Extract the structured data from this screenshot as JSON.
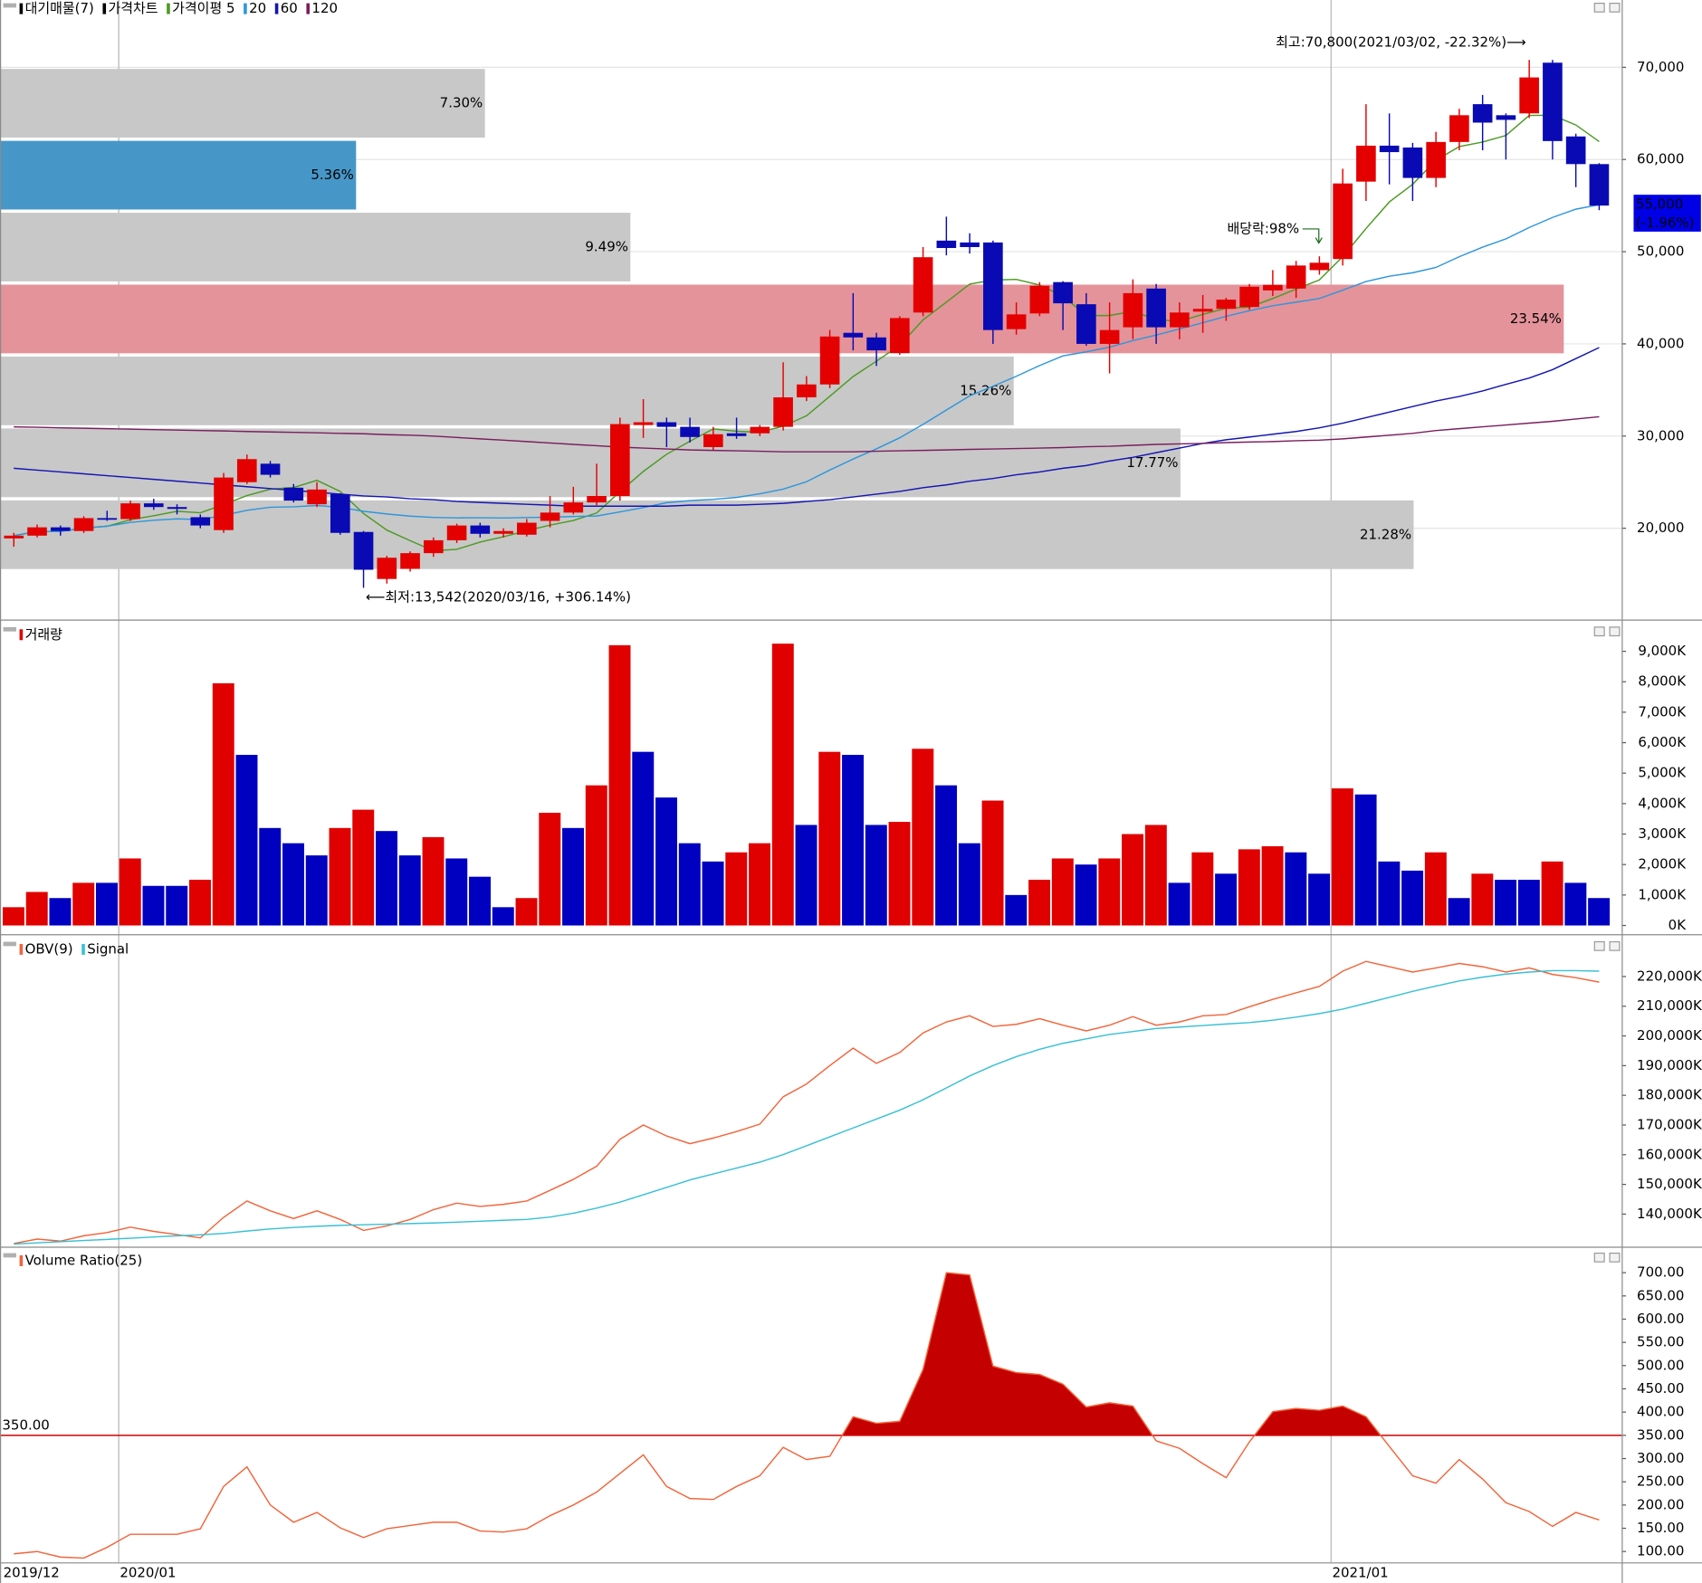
{
  "chart_data": [
    {
      "type": "candlestick",
      "legend_extra": [
        "대기매물(7)",
        "가격차트"
      ],
      "categories": [
        "2019/12",
        null,
        null,
        null,
        null,
        "2020/01",
        null,
        null,
        null,
        null,
        null,
        null,
        null,
        null,
        null,
        null,
        null,
        null,
        null,
        null,
        null,
        null,
        null,
        null,
        null,
        null,
        null,
        null,
        null,
        null,
        null,
        null,
        null,
        null,
        null,
        null,
        null,
        null,
        null,
        null,
        null,
        null,
        null,
        null,
        null,
        null,
        null,
        null,
        null,
        null,
        null,
        null,
        null,
        null,
        null,
        null,
        null,
        "2021/01",
        null,
        null,
        null,
        null,
        null,
        null,
        null,
        null,
        null,
        null,
        null
      ],
      "open": [
        18900,
        19200,
        20100,
        19700,
        21100,
        21000,
        22700,
        22300,
        21200,
        19800,
        25000,
        27000,
        24400,
        22600,
        23700,
        19600,
        14500,
        15600,
        17300,
        18700,
        20300,
        19400,
        19300,
        20800,
        21700,
        22800,
        23500,
        31200,
        31500,
        31000,
        28800,
        30300,
        30300,
        31000,
        34200,
        35600,
        41200,
        40700,
        39000,
        43400,
        51200,
        51000,
        51000,
        41600,
        43300,
        46700,
        44300,
        40000,
        41800,
        46000,
        41800,
        43500,
        43800,
        44000,
        45800,
        46000,
        48000,
        49200,
        57600,
        61500,
        61300,
        58000,
        61900,
        66000,
        64800,
        65000,
        70500,
        62500,
        59500
      ],
      "high": [
        19500,
        20400,
        20300,
        21300,
        21900,
        23000,
        23200,
        22600,
        21500,
        26000,
        28000,
        27300,
        24800,
        25000,
        23800,
        19700,
        17000,
        17500,
        19000,
        20500,
        20600,
        20000,
        21000,
        23500,
        24500,
        27000,
        32000,
        34000,
        32000,
        32000,
        31000,
        32000,
        31200,
        38000,
        36500,
        41500,
        45500,
        41200,
        43000,
        50500,
        53800,
        52000,
        51200,
        44500,
        46700,
        46800,
        45500,
        44500,
        47000,
        46500,
        44500,
        45300,
        45000,
        46500,
        48000,
        49000,
        49500,
        59000,
        66000,
        65000,
        61800,
        63000,
        65500,
        67000,
        65000,
        70800,
        70800,
        62800,
        59600
      ],
      "low": [
        18000,
        19000,
        19200,
        19500,
        20800,
        20800,
        22000,
        21500,
        20000,
        19500,
        24800,
        25500,
        22800,
        22300,
        19300,
        13542,
        14000,
        15300,
        16900,
        18400,
        19000,
        19000,
        19100,
        20100,
        21500,
        22500,
        23000,
        29800,
        28800,
        29300,
        28500,
        29700,
        30000,
        30600,
        33800,
        35200,
        39300,
        37600,
        38800,
        43000,
        49600,
        49800,
        40000,
        41000,
        43000,
        41500,
        39800,
        36800,
        40500,
        40000,
        40500,
        41200,
        42500,
        43700,
        45200,
        45000,
        47500,
        48500,
        55500,
        57300,
        55500,
        57000,
        61000,
        61000,
        60000,
        64500,
        60000,
        57000,
        54500
      ],
      "close": [
        19200,
        20100,
        19700,
        21100,
        21000,
        22700,
        22300,
        22100,
        20300,
        25500,
        27500,
        25800,
        23000,
        24200,
        19500,
        15500,
        16800,
        17300,
        18700,
        20300,
        19400,
        19700,
        20600,
        21700,
        22800,
        23500,
        31300,
        31500,
        31000,
        29900,
        30200,
        30000,
        31000,
        34200,
        35600,
        40800,
        40700,
        39300,
        42800,
        49400,
        50400,
        50500,
        41500,
        43200,
        46300,
        44400,
        40000,
        41500,
        45500,
        41800,
        43400,
        43800,
        44800,
        46200,
        46400,
        48500,
        48800,
        57400,
        61500,
        60800,
        58000,
        61900,
        64800,
        64000,
        64300,
        68900,
        62000,
        59500,
        55000
      ],
      "up_color": "#e40000",
      "down_color": "#0a0ab4",
      "series": [
        {
          "name": "가격이평 5",
          "color": "#4c9a22",
          "period": 5
        },
        {
          "name": "20",
          "color": "#2d96dc",
          "period": 20
        },
        {
          "name": "60",
          "color": "#1414b4",
          "values": [
            26500,
            26300,
            26100,
            25900,
            25700,
            25500,
            25300,
            25100,
            24900,
            24700,
            24500,
            24300,
            24100,
            23900,
            23700,
            23500,
            23400,
            23200,
            23100,
            22900,
            22800,
            22700,
            22600,
            22500,
            22400,
            22400,
            22400,
            22400,
            22400,
            22500,
            22500,
            22500,
            22600,
            22700,
            22900,
            23100,
            23400,
            23700,
            24000,
            24400,
            24700,
            25100,
            25400,
            25800,
            26100,
            26500,
            26800,
            27300,
            27700,
            28200,
            28700,
            29200,
            29600,
            29900,
            30200,
            30500,
            30900,
            31400,
            32000,
            32600,
            33200,
            33800,
            34300,
            34900,
            35600,
            36300,
            37200,
            38400,
            39600
          ]
        },
        {
          "name": "120",
          "color": "#7a1e5e",
          "values": [
            31000,
            30950,
            30900,
            30850,
            30800,
            30750,
            30700,
            30650,
            30600,
            30550,
            30500,
            30450,
            30400,
            30350,
            30300,
            30250,
            30150,
            30100,
            30000,
            29850,
            29700,
            29550,
            29400,
            29250,
            29100,
            28950,
            28800,
            28700,
            28600,
            28500,
            28450,
            28400,
            28350,
            28300,
            28300,
            28300,
            28300,
            28350,
            28400,
            28450,
            28500,
            28550,
            28600,
            28650,
            28700,
            28750,
            28850,
            28900,
            29000,
            29100,
            29150,
            29200,
            29300,
            29350,
            29400,
            29500,
            29550,
            29700,
            29900,
            30100,
            30300,
            30600,
            30800,
            31000,
            31200,
            31400,
            31600,
            31850,
            32100
          ]
        }
      ],
      "supply_zones": {
        "edges": [
          70000,
          62200,
          54400,
          46600,
          38800,
          31000,
          23200,
          15400
        ],
        "values": [
          7.3,
          5.36,
          9.49,
          23.54,
          15.26,
          17.77,
          21.28
        ],
        "value_labels": [
          "7.30%",
          "5.36%",
          "9.49%",
          "23.54%",
          "15.26%",
          "17.77%",
          "21.28%"
        ],
        "colors": {
          "base": "#c8c8c8",
          "current": "#4697c8",
          "max": "#e4939a"
        }
      },
      "annotations": {
        "high": "최고:70,800(2021/03/02, -22.32%)⟶",
        "low": "⟵최저:13,542(2020/03/16, +306.14%)",
        "dividend": "배당락:98%",
        "price": "55,000",
        "change": "(-1.96%)"
      },
      "ylim": [
        10100,
        77300
      ],
      "yticks": [
        {
          "value": 20000,
          "label": "20,000"
        },
        {
          "value": 30000,
          "label": "30,000"
        },
        {
          "value": 40000,
          "label": "40,000"
        },
        {
          "value": 50000,
          "label": "50,000"
        },
        {
          "value": 60000,
          "label": "60,000"
        },
        {
          "value": 70000,
          "label": "70,000"
        }
      ],
      "grid": true
    },
    {
      "type": "bar",
      "title": "거래량",
      "values": [
        600,
        1100,
        900,
        1400,
        1400,
        2200,
        1300,
        1300,
        1500,
        7950,
        5600,
        3200,
        2700,
        2300,
        3200,
        3800,
        3100,
        2300,
        2900,
        2200,
        1600,
        600,
        900,
        3700,
        3200,
        4600,
        9200,
        5700,
        4200,
        2700,
        2100,
        2400,
        2700,
        9250,
        3300,
        5700,
        5600,
        3300,
        3400,
        5800,
        4600,
        2700,
        4100,
        1000,
        1500,
        2200,
        2000,
        2200,
        3000,
        3300,
        1400,
        2400,
        1700,
        2500,
        2600,
        2400,
        1700,
        4500,
        4300,
        2100,
        1800,
        2400,
        900,
        1700,
        1500,
        1500,
        2100,
        1400,
        900
      ],
      "up_color": "#e00000",
      "down_color": "#0000c0",
      "ylim": [
        -250,
        9900
      ],
      "yticks": [
        {
          "value": 0,
          "label": "0K"
        },
        {
          "value": 1000,
          "label": "1,000K"
        },
        {
          "value": 2000,
          "label": "2,000K"
        },
        {
          "value": 3000,
          "label": "3,000K"
        },
        {
          "value": 4000,
          "label": "4,000K"
        },
        {
          "value": 5000,
          "label": "5,000K"
        },
        {
          "value": 6000,
          "label": "6,000K"
        },
        {
          "value": 7000,
          "label": "7,000K"
        },
        {
          "value": 8000,
          "label": "8,000K"
        },
        {
          "value": 9000,
          "label": "9,000K"
        }
      ]
    },
    {
      "type": "line",
      "series": [
        {
          "name": "OBV(9)",
          "color": "#f2643a",
          "values": [
            130100,
            131600,
            130900,
            132700,
            133800,
            135600,
            134200,
            133100,
            132000,
            138900,
            144400,
            141100,
            138500,
            141100,
            138200,
            134500,
            136000,
            138200,
            141500,
            143700,
            142600,
            143300,
            144400,
            148000,
            151700,
            156100,
            165200,
            170000,
            166300,
            163700,
            165600,
            167800,
            170300,
            179500,
            183800,
            190000,
            195900,
            190800,
            194400,
            201000,
            204700,
            206800,
            203200,
            203900,
            205800,
            203600,
            201700,
            203600,
            206500,
            203600,
            204700,
            206800,
            207200,
            209800,
            212300,
            214500,
            216700,
            221800,
            225100,
            223300,
            221500,
            222900,
            224400,
            223300,
            221500,
            222900,
            220700,
            219600,
            218100
          ]
        },
        {
          "name": "Signal",
          "color": "#38c0d4",
          "values": [
            129900,
            130300,
            130700,
            131100,
            131500,
            131900,
            132300,
            132700,
            133000,
            133500,
            134300,
            135000,
            135500,
            135900,
            136200,
            136400,
            136600,
            136800,
            137000,
            137300,
            137600,
            137900,
            138200,
            139000,
            140300,
            142000,
            144000,
            146500,
            149000,
            151500,
            153500,
            155500,
            157500,
            160000,
            163000,
            166000,
            169000,
            172000,
            175000,
            178500,
            182500,
            186500,
            190000,
            193000,
            195500,
            197500,
            199000,
            200500,
            201500,
            202500,
            203000,
            203500,
            204000,
            204500,
            205300,
            206300,
            207500,
            209000,
            211000,
            213000,
            215000,
            216800,
            218500,
            219800,
            220800,
            221500,
            222000,
            222000,
            221800
          ]
        }
      ],
      "ylim": [
        129400,
        232800
      ],
      "yticks": [
        {
          "value": 140000,
          "label": "140,000K"
        },
        {
          "value": 150000,
          "label": "150,000K"
        },
        {
          "value": 160000,
          "label": "160,000K"
        },
        {
          "value": 170000,
          "label": "170,000K"
        },
        {
          "value": 180000,
          "label": "180,000K"
        },
        {
          "value": 190000,
          "label": "190,000K"
        },
        {
          "value": 200000,
          "label": "200,000K"
        },
        {
          "value": 210000,
          "label": "210,000K"
        },
        {
          "value": 220000,
          "label": "220,000K"
        }
      ]
    },
    {
      "type": "area",
      "series": [
        {
          "name": "Volume Ratio(25)",
          "color": "#f2643a",
          "fill": "#c40000",
          "values": [
            95,
            100,
            88,
            86,
            109,
            137,
            137,
            137,
            149,
            240,
            282,
            200,
            163,
            184,
            151,
            130,
            149,
            156,
            163,
            163,
            144,
            142,
            149,
            177,
            200,
            228,
            268,
            308,
            240,
            214,
            212,
            240,
            263,
            324,
            298,
            305,
            390,
            376,
            380,
            492,
            700,
            695,
            499,
            485,
            481,
            460,
            411,
            420,
            413,
            338,
            322,
            289,
            259,
            336,
            401,
            408,
            404,
            413,
            390,
            326,
            263,
            247,
            298,
            256,
            205,
            186,
            154,
            184,
            168
          ]
        }
      ],
      "threshold": {
        "value": 350,
        "label": "350.00",
        "color": "#d00000"
      },
      "ylim": [
        76.6,
        749
      ],
      "yticks": [
        {
          "value": 100,
          "label": "100.00"
        },
        {
          "value": 150,
          "label": "150.00"
        },
        {
          "value": 200,
          "label": "200.00"
        },
        {
          "value": 250,
          "label": "250.00"
        },
        {
          "value": 300,
          "label": "300.00"
        },
        {
          "value": 350,
          "label": "350.00"
        },
        {
          "value": 400,
          "label": "400.00"
        },
        {
          "value": 450,
          "label": "450.00"
        },
        {
          "value": 500,
          "label": "500.00"
        },
        {
          "value": 550,
          "label": "550.00"
        },
        {
          "value": 600,
          "label": "600.00"
        },
        {
          "value": 650,
          "label": "650.00"
        },
        {
          "value": 700,
          "label": "700.00"
        }
      ]
    }
  ]
}
